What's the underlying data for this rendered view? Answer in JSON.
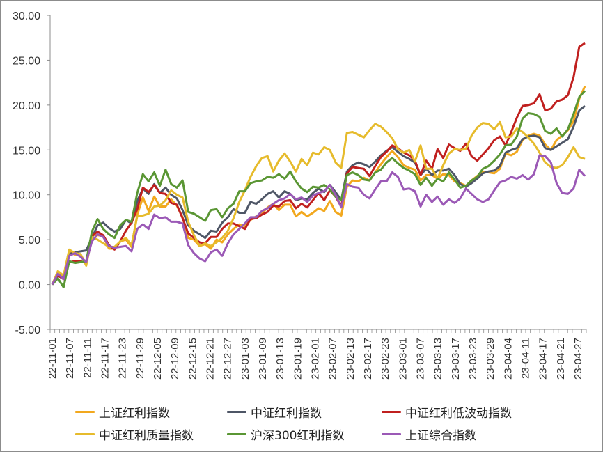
{
  "chart_data": {
    "type": "line",
    "title": "",
    "xlabel": "",
    "ylabel": "",
    "ylim": [
      -5,
      30
    ],
    "yticks": [
      "30.00",
      "25.00",
      "20.00",
      "15.00",
      "10.00",
      "5.00",
      "0.00",
      "-5.00"
    ],
    "xtick_labels": [
      "22-11-01",
      "22-11-07",
      "22-11-11",
      "22-11-17",
      "22-11-23",
      "22-11-29",
      "22-12-05",
      "22-12-09",
      "22-12-15",
      "22-12-21",
      "22-12-27",
      "23-01-03",
      "23-01-09",
      "23-01-13",
      "23-01-19",
      "23-02-01",
      "23-02-07",
      "23-02-13",
      "23-02-17",
      "23-02-23",
      "23-03-01",
      "23-03-07",
      "23-03-13",
      "23-03-17",
      "23-03-23",
      "23-03-29",
      "23-04-04",
      "23-04-11",
      "23-04-17",
      "23-04-21",
      "23-04-27"
    ],
    "grid": false,
    "legend_position": "bottom",
    "series": [
      {
        "name": "上证红利指数",
        "color": "#F2A81E",
        "values": [
          0,
          1.3,
          0.9,
          3.8,
          3.3,
          3.4,
          2.2,
          5.5,
          5.5,
          5.4,
          4.0,
          4.0,
          4.8,
          5.0,
          4.2,
          7.8,
          9.7,
          8.2,
          9.8,
          8.7,
          8.7,
          9.5,
          8.8,
          7.5,
          5.2,
          5.0,
          4.3,
          4.5,
          4.0,
          5.0,
          4.7,
          5.6,
          6.2,
          6.7,
          6.5,
          7.2,
          7.6,
          7.9,
          8.6,
          9.0,
          8.3,
          8.9,
          8.9,
          7.6,
          8.1,
          7.6,
          8.0,
          8.5,
          8.2,
          9.3,
          8.1,
          7.7,
          10.9,
          11.6,
          11.5,
          11.9,
          11.6,
          12.5,
          13.4,
          14.2,
          14.9,
          14.2,
          13.3,
          13.0,
          12.8,
          11.6,
          12.2,
          12.2,
          11.8,
          12.3,
          12.2,
          11.5,
          11.3,
          11.0,
          11.6,
          12.1,
          12.6,
          12.5,
          12.4,
          12.9,
          14.6,
          14.4,
          14.8,
          16.1,
          16.6,
          16.8,
          16.6,
          15.6,
          15.0,
          16.1,
          16.6,
          17.2,
          18.2,
          20.7,
          22.1
        ]
      },
      {
        "name": "中证红利指数",
        "color": "#4E5666",
        "values": [
          0,
          1.1,
          0.7,
          3.4,
          3.6,
          3.7,
          3.8,
          5.2,
          6.6,
          6.9,
          6.3,
          5.9,
          6.2,
          7.2,
          6.8,
          9.3,
          10.7,
          10.1,
          11.2,
          10.2,
          10.8,
          10.0,
          9.6,
          8.3,
          6.6,
          6.0,
          5.6,
          5.2,
          6.0,
          5.9,
          6.9,
          7.5,
          8.4,
          8.0,
          8.0,
          9.2,
          9.0,
          9.5,
          10.1,
          10.4,
          9.7,
          10.4,
          10.1,
          9.4,
          9.6,
          9.5,
          10.2,
          10.7,
          10.3,
          11.1,
          10.3,
          9.4,
          12.6,
          13.3,
          13.6,
          13.4,
          13.1,
          13.7,
          14.4,
          14.9,
          15.3,
          14.8,
          14.3,
          14.0,
          13.6,
          12.2,
          12.9,
          12.2,
          12.7,
          12.7,
          12.9,
          12.2,
          11.2,
          10.9,
          11.3,
          11.8,
          12.4,
          12.6,
          12.7,
          13.2,
          14.7,
          15.0,
          15.2,
          16.2,
          16.5,
          16.6,
          16.4,
          15.2,
          15.0,
          15.4,
          15.8,
          16.2,
          17.6,
          19.4,
          19.9
        ]
      },
      {
        "name": "中证红利低波动指数",
        "color": "#C0201F",
        "values": [
          0,
          1.0,
          0.6,
          2.5,
          2.6,
          2.6,
          2.4,
          5.4,
          5.9,
          5.5,
          4.4,
          3.9,
          4.8,
          6.0,
          6.9,
          8.4,
          10.8,
          10.3,
          11.1,
          10.2,
          10.1,
          9.1,
          8.9,
          7.4,
          5.7,
          5.2,
          4.7,
          4.6,
          5.3,
          5.3,
          6.2,
          6.8,
          6.8,
          6.5,
          6.2,
          7.3,
          7.4,
          7.8,
          8.1,
          8.8,
          8.7,
          9.3,
          9.4,
          8.5,
          9.0,
          8.6,
          9.4,
          10.2,
          9.4,
          10.5,
          9.8,
          8.7,
          12.4,
          13.1,
          13.0,
          12.9,
          12.1,
          13.2,
          14.2,
          14.8,
          15.5,
          15.2,
          14.7,
          14.4,
          13.8,
          12.2,
          13.8,
          12.9,
          15.1,
          14.1,
          15.6,
          15.2,
          14.9,
          15.7,
          14.3,
          13.8,
          14.5,
          15.2,
          16.1,
          16.5,
          15.5,
          17.0,
          18.6,
          19.9,
          20.0,
          20.2,
          21.2,
          19.4,
          19.6,
          20.4,
          20.6,
          21.1,
          23.1,
          26.5,
          26.9
        ]
      },
      {
        "name": "中证红利质量指数",
        "color": "#E6BB2C",
        "values": [
          0,
          1.5,
          1.0,
          3.9,
          3.5,
          3.4,
          2.1,
          5.3,
          5.0,
          4.6,
          4.2,
          4.2,
          4.8,
          5.2,
          4.4,
          7.6,
          7.7,
          7.9,
          8.7,
          8.8,
          9.4,
          10.5,
          10.0,
          9.7,
          7.0,
          5.5,
          4.3,
          4.6,
          4.3,
          4.7,
          5.2,
          6.0,
          7.4,
          9.2,
          10.5,
          12.0,
          13.2,
          14.1,
          14.3,
          12.6,
          13.8,
          14.6,
          13.7,
          12.6,
          14.0,
          13.3,
          14.7,
          14.5,
          15.3,
          15.0,
          13.6,
          13.0,
          16.9,
          17.0,
          16.7,
          16.4,
          17.2,
          17.9,
          17.6,
          17.0,
          16.3,
          15.1,
          14.7,
          15.0,
          13.7,
          15.5,
          12.9,
          12.9,
          11.8,
          13.3,
          14.6,
          15.1,
          15.0,
          15.1,
          16.6,
          17.5,
          18.0,
          17.9,
          17.3,
          18.1,
          16.4,
          16.5,
          17.4,
          17.0,
          16.4,
          15.7,
          14.7,
          13.6,
          13.1,
          13.0,
          13.3,
          14.2,
          15.3,
          14.2,
          14.0
        ]
      },
      {
        "name": "沪深300红利指数",
        "color": "#5A9634",
        "values": [
          0,
          0.7,
          -0.3,
          2.6,
          2.4,
          2.5,
          2.6,
          5.9,
          7.3,
          6.2,
          5.6,
          5.2,
          6.6,
          7.2,
          7.0,
          10.2,
          12.3,
          11.5,
          12.5,
          11.0,
          12.8,
          11.2,
          10.8,
          11.6,
          8.1,
          7.9,
          7.5,
          7.1,
          8.3,
          8.4,
          7.5,
          8.5,
          9.0,
          10.4,
          10.4,
          11.3,
          11.5,
          11.6,
          12.0,
          11.9,
          12.3,
          11.8,
          12.6,
          11.5,
          10.7,
          10.3,
          10.9,
          10.8,
          11.1,
          10.6,
          9.8,
          9.4,
          12.2,
          12.5,
          12.2,
          11.7,
          11.6,
          12.5,
          12.8,
          13.6,
          14.1,
          13.5,
          13.0,
          12.7,
          12.3,
          11.1,
          11.9,
          11.0,
          11.8,
          11.5,
          12.5,
          11.7,
          10.8,
          11.0,
          11.6,
          12.0,
          12.9,
          13.2,
          13.8,
          14.5,
          15.5,
          15.6,
          16.5,
          18.5,
          19.1,
          19.0,
          18.7,
          17.1,
          16.8,
          17.4,
          16.5,
          17.3,
          19.0,
          20.9,
          21.6
        ]
      },
      {
        "name": "上证综合指数",
        "color": "#9B59B6",
        "values": [
          0,
          1.2,
          0.6,
          3.2,
          3.5,
          3.1,
          2.5,
          4.8,
          5.6,
          5.3,
          4.3,
          4.1,
          4.2,
          4.3,
          3.7,
          6.2,
          6.7,
          6.2,
          7.8,
          7.4,
          7.5,
          7.0,
          7.0,
          6.8,
          4.4,
          3.5,
          2.9,
          2.6,
          3.6,
          3.9,
          3.2,
          4.6,
          5.6,
          6.2,
          6.8,
          7.5,
          7.5,
          8.2,
          8.5,
          9.0,
          9.4,
          9.6,
          10.1,
          9.5,
          9.7,
          9.2,
          9.9,
          10.2,
          10.4,
          11.1,
          10.0,
          8.6,
          11.2,
          10.9,
          10.8,
          10.0,
          9.6,
          10.6,
          11.5,
          11.5,
          12.5,
          12.0,
          10.6,
          10.7,
          10.4,
          8.7,
          10.0,
          9.2,
          9.8,
          8.9,
          9.5,
          9.1,
          9.6,
          10.7,
          10.1,
          9.5,
          9.2,
          9.5,
          10.5,
          11.4,
          11.6,
          12.0,
          11.8,
          12.2,
          11.7,
          12.3,
          14.4,
          14.3,
          13.6,
          11.3,
          10.2,
          10.1,
          10.7,
          12.8,
          12.1
        ]
      }
    ]
  },
  "legend": {
    "items": [
      {
        "label": "上证红利指数",
        "color": "#F2A81E"
      },
      {
        "label": "中证红利指数",
        "color": "#4E5666"
      },
      {
        "label": "中证红利低波动指数",
        "color": "#C0201F"
      },
      {
        "label": "中证红利质量指数",
        "color": "#E6BB2C"
      },
      {
        "label": "沪深300红利指数",
        "color": "#5A9634"
      },
      {
        "label": "上证综合指数",
        "color": "#9B59B6"
      }
    ]
  }
}
